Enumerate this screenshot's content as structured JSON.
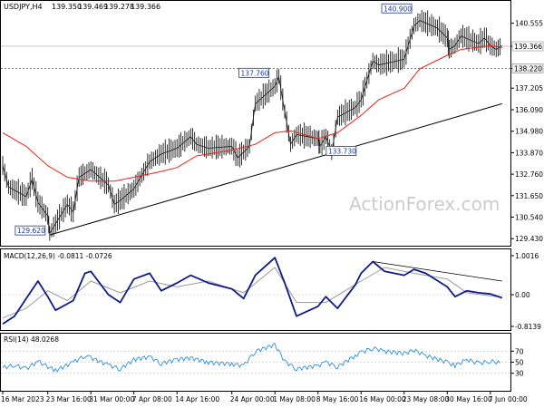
{
  "chart_data": {
    "type": "line",
    "colors": {
      "price": "#1a1a1a",
      "ema": "#e8231b",
      "trendline": "#000000",
      "macd": "#101a8a",
      "macd_signal": "#9a9a9a",
      "rsi": "#2f8fe0",
      "grid": "#cfcfcf",
      "label_box": "#203a9b",
      "watermark": "#c9c9c9"
    },
    "title": "USDJPY,H4",
    "ohlc": [
      "139.350",
      "139.469",
      "139.278",
      "139.366"
    ],
    "current_price_label": "139.366",
    "support_line_label": "138.220",
    "x_ticks": [
      "16 Mar 2023",
      "23 Mar 16:00",
      "31 Mar 00:00",
      "7 Apr 08:00",
      "14 Apr 16:00",
      "24 Apr 00:00",
      "1 May 08:00",
      "8 May 16:00",
      "16 May 00:00",
      "23 May 08:00",
      "30 May 16:00",
      "7 Jun 00:00"
    ],
    "price_panel": {
      "y_ticks": [
        "140.555",
        "139.366",
        "138.220",
        "137.205",
        "136.090",
        "134.980",
        "133.870",
        "132.760",
        "131.650",
        "130.540",
        "129.430"
      ],
      "y_range": [
        129.3,
        141.1
      ],
      "annotations": [
        {
          "label": "129.620",
          "value": 129.62
        },
        {
          "label": "137.760",
          "value": 137.76
        },
        {
          "label": "133.730",
          "value": 133.73
        },
        {
          "label": "140.900",
          "value": 140.9
        }
      ],
      "close_path": [
        {
          "x": "16 Mar 2023",
          "y": 133.2
        },
        {
          "x": "17 Mar",
          "y": 132.1
        },
        {
          "x": "20 Mar",
          "y": 131.6
        },
        {
          "x": "21 Mar",
          "y": 132.5
        },
        {
          "x": "22 Mar",
          "y": 131.3
        },
        {
          "x": "23 Mar 16:00",
          "y": 130.6
        },
        {
          "x": "24 Mar",
          "y": 129.7
        },
        {
          "x": "27 Mar",
          "y": 131.2
        },
        {
          "x": "28 Mar",
          "y": 130.8
        },
        {
          "x": "29 Mar",
          "y": 132.6
        },
        {
          "x": "31 Mar 00:00",
          "y": 133.0
        },
        {
          "x": "3 Apr",
          "y": 132.2
        },
        {
          "x": "4 Apr",
          "y": 131.2
        },
        {
          "x": "5 Apr",
          "y": 131.4
        },
        {
          "x": "7 Apr 08:00",
          "y": 132.0
        },
        {
          "x": "10 Apr",
          "y": 133.4
        },
        {
          "x": "11 Apr",
          "y": 133.6
        },
        {
          "x": "12 Apr",
          "y": 133.8
        },
        {
          "x": "14 Apr 16:00",
          "y": 134.1
        },
        {
          "x": "17 Apr",
          "y": 134.7
        },
        {
          "x": "18 Apr",
          "y": 134.3
        },
        {
          "x": "20 Apr",
          "y": 134.1
        },
        {
          "x": "24 Apr 00:00",
          "y": 134.2
        },
        {
          "x": "25 Apr",
          "y": 133.6
        },
        {
          "x": "26 Apr",
          "y": 133.9
        },
        {
          "x": "27 Apr",
          "y": 134.2
        },
        {
          "x": "28 Apr",
          "y": 136.4
        },
        {
          "x": "1 May 08:00",
          "y": 137.3
        },
        {
          "x": "2 May",
          "y": 137.8
        },
        {
          "x": "3 May",
          "y": 136.0
        },
        {
          "x": "4 May",
          "y": 134.3
        },
        {
          "x": "5 May",
          "y": 134.8
        },
        {
          "x": "8 May 16:00",
          "y": 134.6
        },
        {
          "x": "9 May",
          "y": 134.2
        },
        {
          "x": "10 May",
          "y": 134.7
        },
        {
          "x": "11 May",
          "y": 133.9
        },
        {
          "x": "12 May",
          "y": 135.7
        },
        {
          "x": "15 May",
          "y": 136.2
        },
        {
          "x": "16 May 00:00",
          "y": 136.6
        },
        {
          "x": "17 May",
          "y": 137.6
        },
        {
          "x": "18 May",
          "y": 138.6
        },
        {
          "x": "19 May",
          "y": 138.4
        },
        {
          "x": "22 May",
          "y": 138.6
        },
        {
          "x": "23 May 08:00",
          "y": 138.7
        },
        {
          "x": "24 May",
          "y": 139.4
        },
        {
          "x": "25 May",
          "y": 140.4
        },
        {
          "x": "26 May",
          "y": 140.7
        },
        {
          "x": "29 May",
          "y": 140.3
        },
        {
          "x": "30 May 16:00",
          "y": 139.8
        },
        {
          "x": "31 May",
          "y": 139.2
        },
        {
          "x": "1 Jun",
          "y": 139.4
        },
        {
          "x": "2 Jun",
          "y": 139.9
        },
        {
          "x": "5 Jun",
          "y": 139.5
        },
        {
          "x": "6 Jun",
          "y": 139.8
        },
        {
          "x": "7 Jun 00:00",
          "y": 139.4
        },
        {
          "x": "8 Jun",
          "y": 139.2
        },
        {
          "x": "9 Jun",
          "y": 139.4
        }
      ],
      "ema_path": [
        {
          "x": "16 Mar 2023",
          "y": 134.9
        },
        {
          "x": "20 Mar",
          "y": 134.2
        },
        {
          "x": "23 Mar 16:00",
          "y": 133.2
        },
        {
          "x": "27 Mar",
          "y": 132.6
        },
        {
          "x": "31 Mar 00:00",
          "y": 132.4
        },
        {
          "x": "4 Apr",
          "y": 132.4
        },
        {
          "x": "7 Apr 08:00",
          "y": 132.6
        },
        {
          "x": "12 Apr",
          "y": 132.9
        },
        {
          "x": "14 Apr 16:00",
          "y": 133.1
        },
        {
          "x": "18 Apr",
          "y": 133.7
        },
        {
          "x": "24 Apr 00:00",
          "y": 134.0
        },
        {
          "x": "28 Apr",
          "y": 134.3
        },
        {
          "x": "1 May 08:00",
          "y": 134.9
        },
        {
          "x": "4 May",
          "y": 135.0
        },
        {
          "x": "8 May 16:00",
          "y": 134.6
        },
        {
          "x": "12 May",
          "y": 134.9
        },
        {
          "x": "16 May 00:00",
          "y": 135.8
        },
        {
          "x": "19 May",
          "y": 136.6
        },
        {
          "x": "23 May 08:00",
          "y": 137.2
        },
        {
          "x": "26 May",
          "y": 138.2
        },
        {
          "x": "30 May 16:00",
          "y": 138.9
        },
        {
          "x": "2 Jun",
          "y": 139.2
        },
        {
          "x": "7 Jun 00:00",
          "y": 139.4
        },
        {
          "x": "9 Jun",
          "y": 139.3
        }
      ],
      "trendline": [
        {
          "x": "24 Mar",
          "y": 129.62
        },
        {
          "x": "9 Jun",
          "y": 136.4
        }
      ]
    },
    "macd_panel": {
      "label": "MACD(12,26,9) -0.0811 -0.0726",
      "y_ticks": [
        "1.0016",
        "0.00",
        "-0.8139"
      ],
      "y_range": [
        -0.8139,
        1.0016
      ],
      "macd_path": [
        {
          "x": "16 Mar 2023",
          "y": -0.75
        },
        {
          "x": "18 Mar",
          "y": -0.55
        },
        {
          "x": "20 Mar",
          "y": -0.1
        },
        {
          "x": "22 Mar",
          "y": 0.35
        },
        {
          "x": "23 Mar 16:00",
          "y": -0.05
        },
        {
          "x": "25 Mar",
          "y": -0.4
        },
        {
          "x": "28 Mar",
          "y": -0.15
        },
        {
          "x": "30 Mar",
          "y": 0.55
        },
        {
          "x": "31 Mar 00:00",
          "y": 0.6
        },
        {
          "x": "3 Apr",
          "y": 0.0
        },
        {
          "x": "5 Apr",
          "y": -0.2
        },
        {
          "x": "7 Apr 08:00",
          "y": 0.4
        },
        {
          "x": "10 Apr",
          "y": 0.55
        },
        {
          "x": "12 Apr",
          "y": 0.1
        },
        {
          "x": "14 Apr 16:00",
          "y": 0.3
        },
        {
          "x": "17 Apr",
          "y": 0.5
        },
        {
          "x": "20 Apr",
          "y": 0.3
        },
        {
          "x": "24 Apr 00:00",
          "y": 0.15
        },
        {
          "x": "26 Apr",
          "y": -0.1
        },
        {
          "x": "28 Apr",
          "y": 0.5
        },
        {
          "x": "1 May 08:00",
          "y": 0.95
        },
        {
          "x": "3 May",
          "y": 0.3
        },
        {
          "x": "5 May",
          "y": -0.55
        },
        {
          "x": "8 May 16:00",
          "y": -0.3
        },
        {
          "x": "10 May",
          "y": -0.05
        },
        {
          "x": "12 May",
          "y": -0.35
        },
        {
          "x": "15 May",
          "y": 0.25
        },
        {
          "x": "16 May 00:00",
          "y": 0.55
        },
        {
          "x": "18 May",
          "y": 0.85
        },
        {
          "x": "20 May",
          "y": 0.6
        },
        {
          "x": "23 May 08:00",
          "y": 0.5
        },
        {
          "x": "25 May",
          "y": 0.65
        },
        {
          "x": "27 May",
          "y": 0.55
        },
        {
          "x": "30 May 16:00",
          "y": 0.2
        },
        {
          "x": "1 Jun",
          "y": -0.05
        },
        {
          "x": "3 Jun",
          "y": 0.1
        },
        {
          "x": "5 Jun",
          "y": 0.05
        },
        {
          "x": "7 Jun 00:00",
          "y": 0.02
        },
        {
          "x": "9 Jun",
          "y": -0.08
        }
      ],
      "signal_path": [
        {
          "x": "16 Mar 2023",
          "y": -0.6
        },
        {
          "x": "20 Mar",
          "y": -0.35
        },
        {
          "x": "23 Mar 16:00",
          "y": 0.1
        },
        {
          "x": "27 Mar",
          "y": -0.15
        },
        {
          "x": "31 Mar 00:00",
          "y": 0.35
        },
        {
          "x": "5 Apr",
          "y": 0.05
        },
        {
          "x": "10 Apr",
          "y": 0.35
        },
        {
          "x": "14 Apr 16:00",
          "y": 0.2
        },
        {
          "x": "20 Apr",
          "y": 0.35
        },
        {
          "x": "26 Apr",
          "y": 0.05
        },
        {
          "x": "1 May 08:00",
          "y": 0.7
        },
        {
          "x": "5 May",
          "y": -0.2
        },
        {
          "x": "10 May",
          "y": -0.2
        },
        {
          "x": "16 May 00:00",
          "y": 0.35
        },
        {
          "x": "20 May",
          "y": 0.7
        },
        {
          "x": "25 May",
          "y": 0.55
        },
        {
          "x": "30 May 16:00",
          "y": 0.4
        },
        {
          "x": "3 Jun",
          "y": 0.05
        },
        {
          "x": "9 Jun",
          "y": -0.07
        }
      ],
      "divergence_line": [
        {
          "x": "18 May",
          "y": 0.85
        },
        {
          "x": "9 Jun",
          "y": 0.35
        }
      ]
    },
    "rsi_panel": {
      "label": "RSI(14) 48.0268",
      "y_ticks": [
        "70",
        "50",
        "30"
      ],
      "y_range": [
        0,
        100
      ],
      "rsi_path": [
        {
          "x": "16 Mar 2023",
          "y": 40
        },
        {
          "x": "18 Mar",
          "y": 45
        },
        {
          "x": "20 Mar",
          "y": 38
        },
        {
          "x": "22 Mar",
          "y": 52
        },
        {
          "x": "23 Mar 16:00",
          "y": 42
        },
        {
          "x": "25 Mar",
          "y": 35
        },
        {
          "x": "28 Mar",
          "y": 50
        },
        {
          "x": "30 Mar",
          "y": 62
        },
        {
          "x": "31 Mar 00:00",
          "y": 58
        },
        {
          "x": "3 Apr",
          "y": 45
        },
        {
          "x": "5 Apr",
          "y": 38
        },
        {
          "x": "7 Apr 08:00",
          "y": 55
        },
        {
          "x": "10 Apr",
          "y": 60
        },
        {
          "x": "12 Apr",
          "y": 48
        },
        {
          "x": "14 Apr 16:00",
          "y": 55
        },
        {
          "x": "17 Apr",
          "y": 58
        },
        {
          "x": "20 Apr",
          "y": 50
        },
        {
          "x": "24 Apr 00:00",
          "y": 47
        },
        {
          "x": "26 Apr",
          "y": 44
        },
        {
          "x": "28 Apr",
          "y": 70
        },
        {
          "x": "1 May 08:00",
          "y": 82
        },
        {
          "x": "3 May",
          "y": 52
        },
        {
          "x": "5 May",
          "y": 38
        },
        {
          "x": "8 May 16:00",
          "y": 44
        },
        {
          "x": "10 May",
          "y": 50
        },
        {
          "x": "12 May",
          "y": 42
        },
        {
          "x": "15 May",
          "y": 62
        },
        {
          "x": "16 May 00:00",
          "y": 68
        },
        {
          "x": "18 May",
          "y": 76
        },
        {
          "x": "20 May",
          "y": 70
        },
        {
          "x": "23 May 08:00",
          "y": 66
        },
        {
          "x": "25 May",
          "y": 72
        },
        {
          "x": "27 May",
          "y": 62
        },
        {
          "x": "30 May 16:00",
          "y": 50
        },
        {
          "x": "1 Jun",
          "y": 44
        },
        {
          "x": "3 Jun",
          "y": 55
        },
        {
          "x": "5 Jun",
          "y": 48
        },
        {
          "x": "7 Jun 00:00",
          "y": 52
        },
        {
          "x": "9 Jun",
          "y": 48
        }
      ]
    }
  },
  "watermark": "ActionForex.com"
}
